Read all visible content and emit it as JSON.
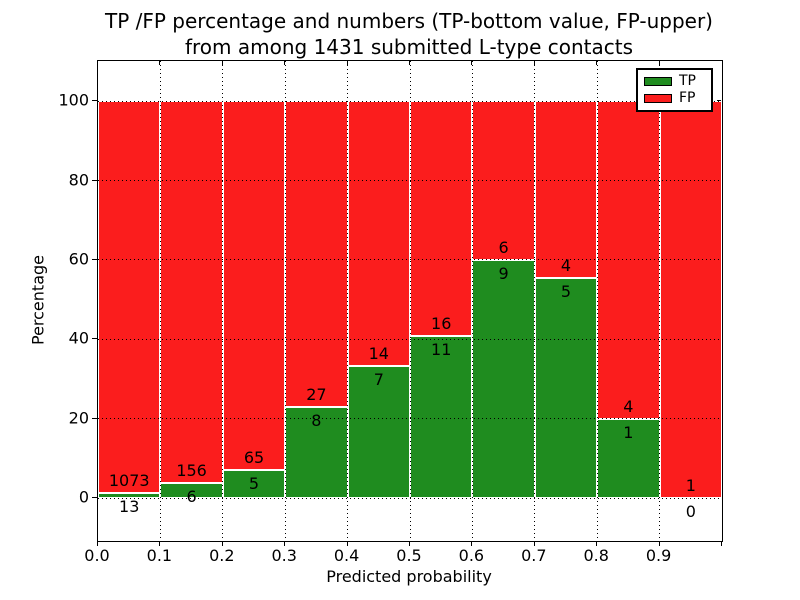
{
  "title_line1": "TP /FP percentage and numbers (TP-bottom value, FP-upper)",
  "title_line2": "from among 1431 submitted L-type contacts",
  "chart_data": {
    "type": "bar",
    "stacked": true,
    "title": "TP /FP percentage and numbers (TP-bottom value, FP-upper) from among 1431 submitted L-type contacts",
    "xlabel": "Predicted probability",
    "ylabel": "Percentage",
    "total_contacts": 1431,
    "bin_width": 0.1,
    "categories": [
      "0.0-0.1",
      "0.1-0.2",
      "0.2-0.3",
      "0.3-0.4",
      "0.4-0.5",
      "0.5-0.6",
      "0.6-0.7",
      "0.7-0.8",
      "0.8-0.9",
      "0.9-1.0"
    ],
    "series": [
      {
        "name": "TP",
        "color": "#1f8c1f",
        "counts": [
          13,
          6,
          5,
          8,
          7,
          11,
          9,
          5,
          1,
          0
        ]
      },
      {
        "name": "FP",
        "color": "#fb1d1d",
        "counts": [
          1073,
          156,
          65,
          27,
          14,
          16,
          6,
          4,
          4,
          1
        ]
      }
    ],
    "tp_percent": [
      1.2,
      3.7,
      7.14,
      22.86,
      33.33,
      40.74,
      60.0,
      55.56,
      20.0,
      0.0
    ],
    "xticks": [
      "0.0",
      "0.1",
      "0.2",
      "0.3",
      "0.4",
      "0.5",
      "0.6",
      "0.7",
      "0.8",
      "0.9"
    ],
    "yticks": [
      0,
      20,
      40,
      60,
      80,
      100
    ],
    "xlim": [
      0.0,
      1.0
    ],
    "ylim": [
      -10.8,
      110.1
    ],
    "grid": "dotted",
    "legend": {
      "position": "upper right",
      "entries": [
        {
          "label": "TP",
          "color": "#1f8c1f"
        },
        {
          "label": "FP",
          "color": "#fb1d1d"
        }
      ]
    }
  }
}
